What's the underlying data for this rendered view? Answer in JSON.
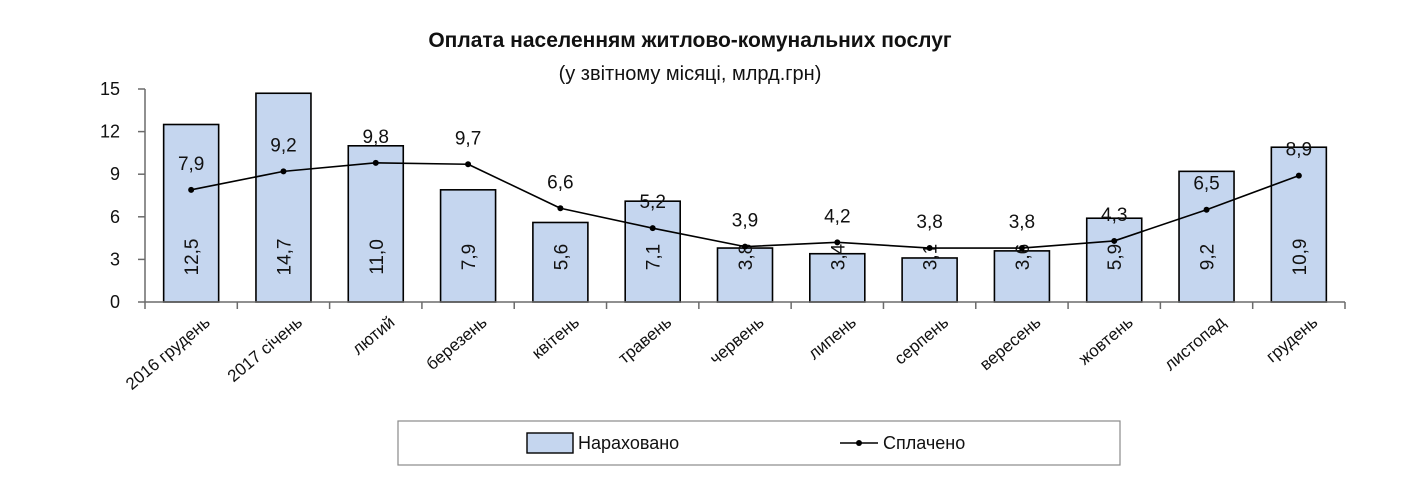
{
  "chart_data": {
    "type": "bar",
    "title": "Оплата населенням житлово-комунальних послуг",
    "subtitle": "(у звітному місяці, млрд.грн)",
    "categories": [
      "2016 грудень",
      "2017 січень",
      "лютий",
      "березень",
      "квітень",
      "травень",
      "червень",
      "липень",
      "серпень",
      "вересень",
      "жовтень",
      "листопад",
      "грудень"
    ],
    "series": [
      {
        "name": "Нараховано",
        "type": "bar",
        "values": [
          12.5,
          14.7,
          11.0,
          7.9,
          5.6,
          7.1,
          3.8,
          3.4,
          3.1,
          3.6,
          5.9,
          9.2,
          10.9
        ],
        "labels": [
          "12,5",
          "14,7",
          "11,0",
          "7,9",
          "5,6",
          "7,1",
          "3,8",
          "3,4",
          "3,1",
          "3,6",
          "5,9",
          "9,2",
          "10,9"
        ],
        "color": "#c5d6ef"
      },
      {
        "name": "Сплачено",
        "type": "line",
        "values": [
          7.9,
          9.2,
          9.8,
          9.7,
          6.6,
          5.2,
          3.9,
          4.2,
          3.8,
          3.8,
          4.3,
          6.5,
          8.9
        ],
        "labels": [
          "7,9",
          "9,2",
          "9,8",
          "9,7",
          "6,6",
          "5,2",
          "3,9",
          "4,2",
          "3,8",
          "3,8",
          "4,3",
          "6,5",
          "8,9"
        ],
        "color": "#000000"
      }
    ],
    "y_ticks": [
      "0",
      "3",
      "6",
      "9",
      "12",
      "15"
    ],
    "ylim": [
      0,
      15
    ],
    "grid": false,
    "legend_position": "bottom"
  }
}
